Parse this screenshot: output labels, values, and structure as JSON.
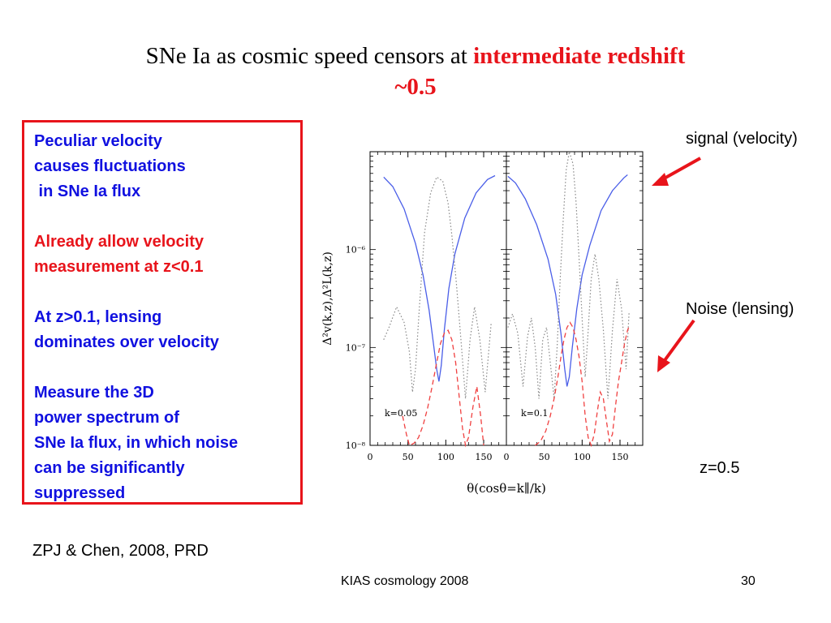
{
  "slide": {
    "title_part1": "SNe Ia as cosmic speed censors at ",
    "title_highlight": "intermediate redshift",
    "title_line2": "~0.5",
    "box_groups": [
      {
        "color": "blue",
        "lines": [
          "Peculiar velocity",
          "causes fluctuations",
          " in SNe Ia flux"
        ]
      },
      {
        "color": "red",
        "lines": [
          "Already allow velocity",
          "measurement at z<0.1"
        ]
      },
      {
        "color": "blue",
        "lines": [
          "At z>0.1, lensing",
          "dominates over velocity"
        ]
      },
      {
        "color": "blue",
        "lines": [
          "Measure the 3D",
          "power spectrum of",
          "SNe Ia flux, in which noise",
          "can be significantly",
          "suppressed"
        ]
      }
    ],
    "citation": "ZPJ & Chen, 2008, PRD",
    "signal_label": "signal (velocity)",
    "noise_label": "Noise (lensing)",
    "z_label": "z=0.5",
    "footer_center": "KIAS cosmology 2008",
    "page_number": "30"
  },
  "colors": {
    "accent_red": "#e8141b",
    "text_blue": "#1010e0",
    "signal_curve": "#4a5ee8",
    "noise_curve": "#f04040",
    "dotted_curve": "#888888"
  },
  "chart_data": {
    "type": "line",
    "yscale": "log",
    "ylim": [
      1e-08,
      1e-05
    ],
    "xlim": [
      0,
      180
    ],
    "x_ticks": [
      0,
      50,
      100,
      150
    ],
    "y_tick_labels": [
      "10⁻⁸",
      "10⁻⁷",
      "10⁻⁶"
    ],
    "y_tick_values": [
      1e-08,
      1e-07,
      1e-06
    ],
    "xlabel": "θ(cosθ=k∥/k)",
    "ylabel": "Δ²v(k,z),Δ²L(k,z)",
    "panels": [
      {
        "annotation": "k=0.05",
        "series": [
          {
            "style": "solid-blue",
            "x": [
              18,
              30,
              45,
              60,
              70,
              78,
              84,
              88,
              91,
              94,
              98,
              104,
              112,
              125,
              140,
              155,
              165
            ],
            "y": [
              5.5e-06,
              4.4e-06,
              2.6e-06,
              1.15e-06,
              5.5e-07,
              2.4e-07,
              1.05e-07,
              6e-08,
              4.5e-08,
              6.5e-08,
              1.5e-07,
              4e-07,
              9e-07,
              2.1e-06,
              3.8e-06,
              5.2e-06,
              5.7e-06
            ]
          },
          {
            "style": "dotted-gray",
            "x": [
              18,
              25,
              35,
              45,
              52,
              56,
              60,
              65,
              72,
              80,
              88,
              96,
              103,
              108,
              114,
              120,
              126,
              132,
              138,
              145,
              152,
              160
            ],
            "y": [
              1.2e-07,
              1.6e-07,
              2.6e-07,
              1.8e-07,
              9e-08,
              3.5e-08,
              6e-08,
              2.5e-07,
              1.5e-06,
              3.8e-06,
              5.5e-06,
              5e-06,
              3e-06,
              1.4e-06,
              4.5e-07,
              1.2e-07,
              3e-08,
              1.2e-07,
              2.6e-07,
              1.2e-07,
              3.5e-08,
              1.8e-07
            ]
          },
          {
            "style": "dashed-red",
            "x": [
              43,
              48,
              52,
              58,
              64,
              70,
              76,
              82,
              88,
              93,
              98,
              103,
              108,
              113,
              118,
              122,
              126,
              130,
              136,
              141,
              146,
              150
            ],
            "y": [
              2e-08,
              1.3e-08,
              1e-08,
              1.05e-08,
              1.2e-08,
              1.6e-08,
              2.4e-08,
              4e-08,
              7e-08,
              1.1e-07,
              1.4e-07,
              1.5e-07,
              1.2e-07,
              7e-08,
              3e-08,
              1.5e-08,
              1e-08,
              1.2e-08,
              2.5e-08,
              4e-08,
              2e-08,
              1e-08
            ]
          }
        ]
      },
      {
        "annotation": "k=0.1",
        "series": [
          {
            "style": "solid-blue",
            "x": [
              2,
              12,
              25,
              40,
              55,
              65,
              72,
              77,
              80,
              83,
              87,
              93,
              100,
              110,
              125,
              140,
              155,
              160
            ],
            "y": [
              5.6e-06,
              4.8e-06,
              3.3e-06,
              1.8e-06,
              8e-07,
              3.5e-07,
              1.4e-07,
              6e-08,
              4e-08,
              5e-08,
              1e-07,
              2.5e-07,
              5.5e-07,
              1.1e-06,
              2.5e-06,
              4e-06,
              5.4e-06,
              5.8e-06
            ]
          },
          {
            "style": "dotted-gray",
            "x": [
              2,
              8,
              15,
              22,
              28,
              33,
              38,
              43,
              48,
              53,
              58,
              63,
              67,
              71,
              75,
              79,
              83,
              88,
              92,
              96,
              100,
              104,
              108,
              112,
              117,
              122,
              128,
              134,
              140,
              146,
              152,
              158,
              162
            ],
            "y": [
              1.6e-07,
              2.2e-07,
              1.4e-07,
              4e-08,
              1.3e-07,
              2e-07,
              1e-07,
              3e-08,
              1.2e-07,
              1.6e-07,
              7e-08,
              3e-08,
              1e-07,
              5e-07,
              2e-06,
              6.5e-06,
              1e-05,
              7.5e-06,
              3e-06,
              8e-07,
              2e-07,
              5e-08,
              1.5e-07,
              5e-07,
              9e-07,
              5e-07,
              1.5e-07,
              3e-08,
              1.5e-07,
              5e-07,
              2.5e-07,
              6e-08,
              2.3e-07
            ]
          },
          {
            "style": "dashed-red",
            "x": [
              38,
              45,
              52,
              58,
              63,
              68,
              72,
              76,
              80,
              84,
              88,
              92,
              96,
              100,
              104,
              108,
              112,
              116,
              120,
              124,
              128,
              132,
              136,
              140,
              144,
              148,
              152,
              156,
              160,
              163
            ],
            "y": [
              1e-08,
              1.1e-08,
              1.4e-08,
              2e-08,
              3e-08,
              5e-08,
              8e-08,
              1.2e-07,
              1.6e-07,
              1.8e-07,
              1.6e-07,
              1.2e-07,
              8e-08,
              4.5e-08,
              2e-08,
              1.2e-08,
              1e-08,
              1.3e-08,
              2.2e-08,
              3.5e-08,
              3e-08,
              1.8e-08,
              1.1e-08,
              1.3e-08,
              2.5e-08,
              4.5e-08,
              7e-08,
              1.1e-07,
              1.5e-07,
              1.7e-07
            ]
          }
        ]
      }
    ]
  }
}
